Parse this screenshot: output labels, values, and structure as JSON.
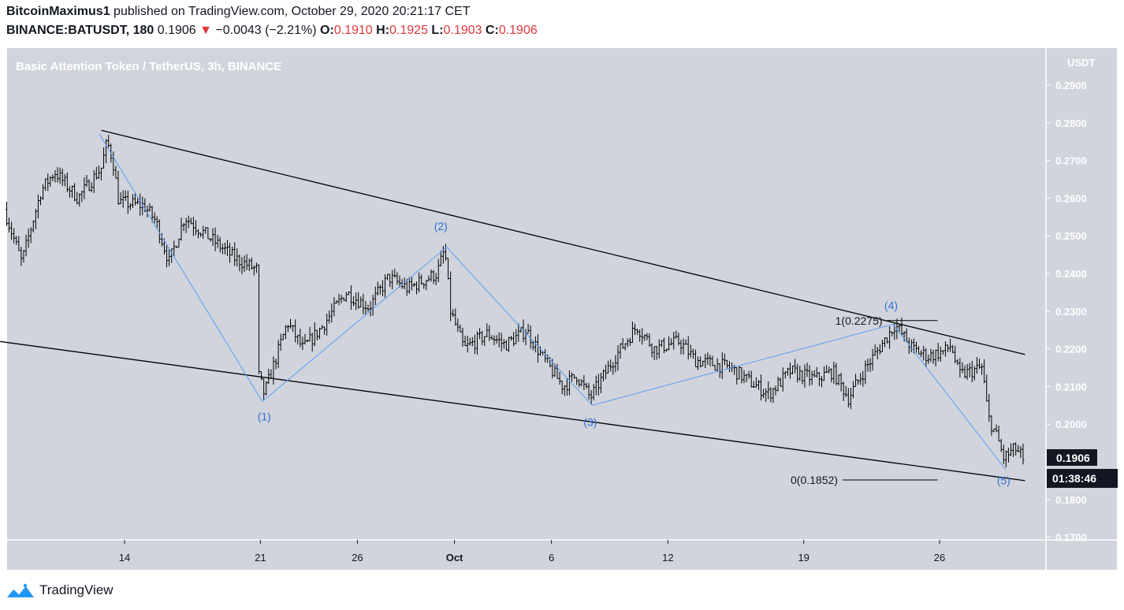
{
  "header": {
    "author": "BitcoinMaximus1",
    "published": "published on TradingView.com, October 29, 2020 20:21:17 CET",
    "symbol": "BINANCE:BATUSDT, 180",
    "last": "0.1906",
    "change": "−0.0043 (−2.21%)",
    "o_label": "O:",
    "o": "0.1910",
    "h_label": "H:",
    "h": "0.1925",
    "l_label": "L:",
    "l": "0.1903",
    "c_label": "C:",
    "c": "0.1906"
  },
  "footer": {
    "brand": "TradingView"
  },
  "colors": {
    "background": "#d1d4dc",
    "candle": "#000000",
    "wave": "#5b9cf6",
    "wave_label": "#2f6fd6",
    "text_light": "#ffffff",
    "badge": "#131722"
  },
  "chart_data": {
    "type": "candlestick",
    "title": "Basic Attention Token / TetherUS, 3h, BINANCE",
    "y_unit": "USDT",
    "ylim": [
      0.1695,
      0.295
    ],
    "y_ticks": [
      "0.2900",
      "0.2800",
      "0.2700",
      "0.2600",
      "0.2500",
      "0.2400",
      "0.2300",
      "0.2200",
      "0.2100",
      "0.2000",
      "0.1900",
      "0.1800",
      "0.1700"
    ],
    "x_ticks": [
      {
        "label": "14",
        "day": 0
      },
      {
        "label": "21",
        "day": 7
      },
      {
        "label": "26",
        "day": 12
      },
      {
        "label": "Oct",
        "day": 17
      },
      {
        "label": "6",
        "day": 22
      },
      {
        "label": "12",
        "day": 28
      },
      {
        "label": "19",
        "day": 35
      },
      {
        "label": "26",
        "day": 42
      }
    ],
    "price_path": [
      {
        "day": -6.2,
        "price": 0.257
      },
      {
        "day": -5.3,
        "price": 0.243
      },
      {
        "day": -4.3,
        "price": 0.262
      },
      {
        "day": -3.6,
        "price": 0.267
      },
      {
        "day": -2.4,
        "price": 0.26
      },
      {
        "day": -1.2,
        "price": 0.268
      },
      {
        "day": -0.9,
        "price": 0.275
      },
      {
        "day": -0.6,
        "price": 0.27
      },
      {
        "day": -0.3,
        "price": 0.259
      },
      {
        "day": 1.0,
        "price": 0.258
      },
      {
        "day": 1.6,
        "price": 0.254
      },
      {
        "day": 2.3,
        "price": 0.243
      },
      {
        "day": 3.1,
        "price": 0.255
      },
      {
        "day": 4.5,
        "price": 0.249
      },
      {
        "day": 5.7,
        "price": 0.244
      },
      {
        "day": 6.8,
        "price": 0.241
      },
      {
        "day": 6.9,
        "price": 0.213
      },
      {
        "day": 7.2,
        "price": 0.208
      },
      {
        "day": 8.4,
        "price": 0.227
      },
      {
        "day": 9.2,
        "price": 0.22
      },
      {
        "day": 10.2,
        "price": 0.226
      },
      {
        "day": 11.4,
        "price": 0.235
      },
      {
        "day": 12.6,
        "price": 0.231
      },
      {
        "day": 13.6,
        "price": 0.239
      },
      {
        "day": 14.6,
        "price": 0.236
      },
      {
        "day": 16.1,
        "price": 0.24
      },
      {
        "day": 16.5,
        "price": 0.2465
      },
      {
        "day": 16.8,
        "price": 0.23
      },
      {
        "day": 17.5,
        "price": 0.22
      },
      {
        "day": 18.7,
        "price": 0.224
      },
      {
        "day": 19.6,
        "price": 0.221
      },
      {
        "day": 20.7,
        "price": 0.225
      },
      {
        "day": 21.5,
        "price": 0.218
      },
      {
        "day": 22.6,
        "price": 0.21
      },
      {
        "day": 23.3,
        "price": 0.213
      },
      {
        "day": 24.0,
        "price": 0.207
      },
      {
        "day": 25.3,
        "price": 0.218
      },
      {
        "day": 26.4,
        "price": 0.226
      },
      {
        "day": 27.3,
        "price": 0.22
      },
      {
        "day": 28.6,
        "price": 0.222
      },
      {
        "day": 29.4,
        "price": 0.217
      },
      {
        "day": 31.2,
        "price": 0.215
      },
      {
        "day": 32.3,
        "price": 0.211
      },
      {
        "day": 33.2,
        "price": 0.208
      },
      {
        "day": 34.3,
        "price": 0.214
      },
      {
        "day": 35.6,
        "price": 0.212
      },
      {
        "day": 36.5,
        "price": 0.214
      },
      {
        "day": 37.3,
        "price": 0.207
      },
      {
        "day": 38.2,
        "price": 0.215
      },
      {
        "day": 39.4,
        "price": 0.224
      },
      {
        "day": 39.7,
        "price": 0.2265
      },
      {
        "day": 40.6,
        "price": 0.22
      },
      {
        "day": 41.4,
        "price": 0.218
      },
      {
        "day": 42.3,
        "price": 0.2195
      },
      {
        "day": 42.6,
        "price": 0.221
      },
      {
        "day": 43.0,
        "price": 0.213
      },
      {
        "day": 44.2,
        "price": 0.215
      },
      {
        "day": 44.5,
        "price": 0.202
      },
      {
        "day": 45.0,
        "price": 0.196
      },
      {
        "day": 45.3,
        "price": 0.191
      },
      {
        "day": 45.9,
        "price": 0.1935
      },
      {
        "day": 46.4,
        "price": 0.1906
      }
    ],
    "trendlines": [
      {
        "name": "upper-trendline",
        "from": {
          "day": -1.2,
          "price": 0.278
        },
        "to": {
          "day": 46.4,
          "price": 0.2185
        }
      },
      {
        "name": "lower-trendline",
        "from": {
          "day": -6.5,
          "price": 0.222
        },
        "to": {
          "day": 46.4,
          "price": 0.185
        }
      }
    ],
    "wave": {
      "points": [
        {
          "day": -1.3,
          "price": 0.277
        },
        {
          "day": 7.1,
          "price": 0.206
        },
        {
          "day": 16.6,
          "price": 0.247
        },
        {
          "day": 24.1,
          "price": 0.205
        },
        {
          "day": 39.6,
          "price": 0.2265
        },
        {
          "day": 45.4,
          "price": 0.188
        }
      ],
      "labels": [
        {
          "text": "(1)",
          "day": 7.2,
          "price": 0.201
        },
        {
          "text": "(2)",
          "day": 16.3,
          "price": 0.2515
        },
        {
          "text": "(3)",
          "day": 24.0,
          "price": 0.1995
        },
        {
          "text": "(4)",
          "day": 39.5,
          "price": 0.2305
        },
        {
          "text": "(5)",
          "day": 45.3,
          "price": 0.184
        }
      ]
    },
    "fib_levels": [
      {
        "label": "1(0.2275)",
        "price": 0.2275,
        "day_from": 39.3,
        "day_to": 41.9
      },
      {
        "label": "0(0.1852)",
        "price": 0.1852,
        "day_from": 37.0,
        "day_to": 41.9
      }
    ],
    "last_price": "0.1906",
    "countdown": "01:38:46"
  }
}
